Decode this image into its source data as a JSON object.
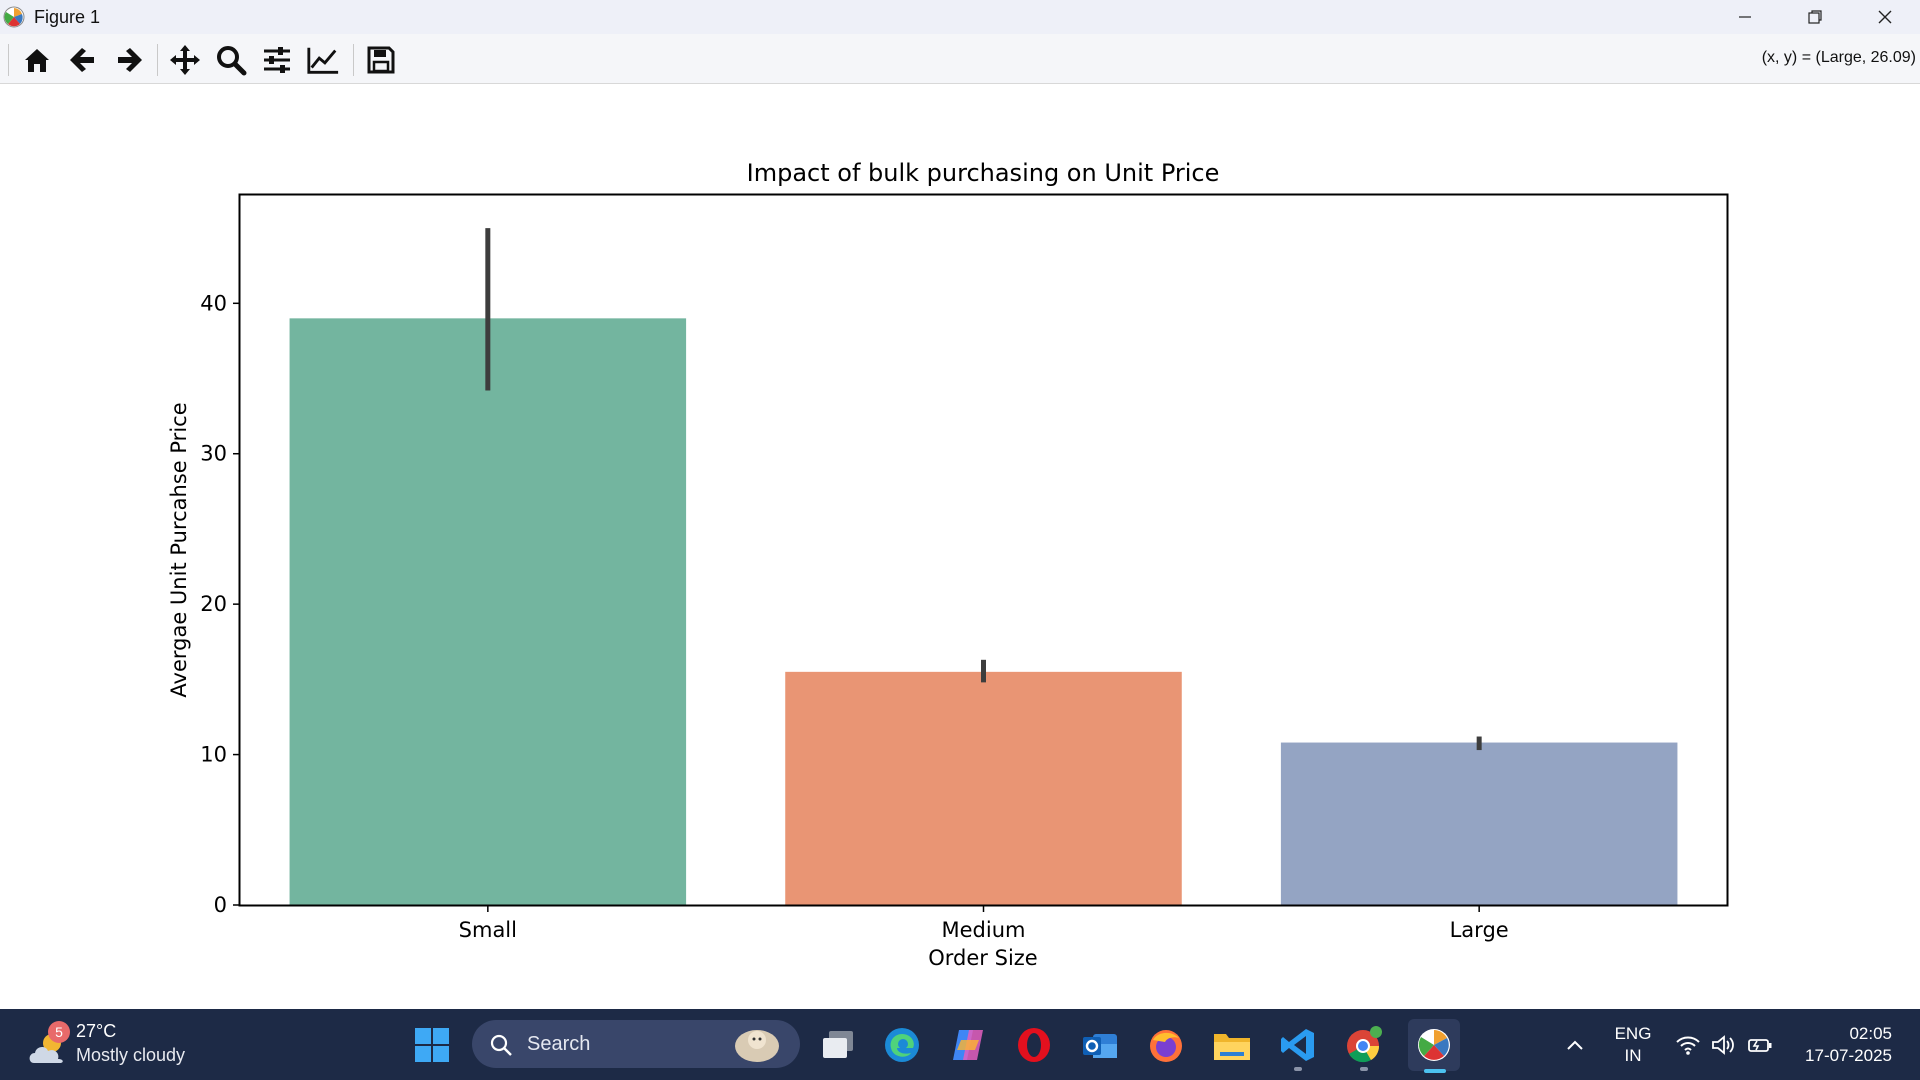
{
  "window": {
    "title": "Figure 1",
    "controls": [
      "minimize-icon",
      "restore-icon",
      "close-icon"
    ]
  },
  "toolbar": {
    "buttons": [
      "home-icon",
      "back-icon",
      "forward-icon",
      "pan-icon",
      "zoom-icon",
      "configure-subplots-icon",
      "edit-axes-icon",
      "save-icon"
    ],
    "coords_readout": "(x, y) = (Large, 26.09)"
  },
  "chart_data": {
    "type": "bar",
    "title": "Impact of bulk purchasing on Unit Price",
    "xlabel": "Order Size",
    "ylabel": "Avergae Unit Purcahse Price",
    "categories": [
      "Small",
      "Medium",
      "Large"
    ],
    "values": [
      39.0,
      15.5,
      10.8
    ],
    "error_bars": [
      [
        34.2,
        45.0
      ],
      [
        14.8,
        16.3
      ],
      [
        10.3,
        11.2
      ]
    ],
    "colors": [
      "#73b59f",
      "#e99574",
      "#94a4c3"
    ],
    "ylim": [
      0,
      47.2
    ],
    "yticks": [
      0,
      10,
      20,
      30,
      40
    ],
    "grid": false
  },
  "taskbar": {
    "weather": {
      "badge": "5",
      "temp": "27°C",
      "desc": "Mostly cloudy"
    },
    "search_label": "Search",
    "apps": [
      "start-icon",
      "task-view-icon",
      "edge-icon",
      "copilot-icon",
      "opera-icon",
      "outlook-icon",
      "firefox-icon",
      "file-explorer-icon",
      "vscode-icon",
      "chrome-icon",
      "matplotlib-icon"
    ],
    "lang_top": "ENG",
    "lang_bottom": "IN",
    "time": "02:05",
    "date": "17-07-2025"
  }
}
